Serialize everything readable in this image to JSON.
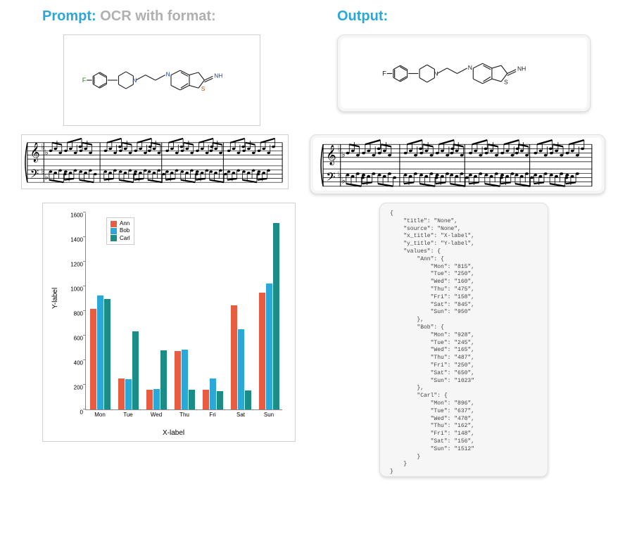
{
  "header": {
    "prompt_label": "Prompt:",
    "prompt_text": "OCR with format:",
    "output_label": "Output:"
  },
  "molecule": {
    "atoms": {
      "F": "F",
      "N1": "N",
      "N2": "N",
      "S": "S",
      "NH": "NH"
    },
    "colors": {
      "F": "#2e7d32",
      "N": "#1e40af",
      "S": "#b45309",
      "C": "#222222"
    }
  },
  "chart": {
    "type": "bar",
    "xlabel": "X-label",
    "ylabel": "Y-label",
    "ymin": 0,
    "ymax": 1600,
    "ytick_step": 200,
    "categories": [
      "Mon",
      "Tue",
      "Wed",
      "Thu",
      "Fri",
      "Sat",
      "Sun"
    ],
    "series": [
      {
        "name": "Ann",
        "color": "#e85c41",
        "values": [
          815,
          250,
          160,
          475,
          158,
          845,
          950
        ]
      },
      {
        "name": "Bob",
        "color": "#2aa8d8",
        "values": [
          928,
          245,
          165,
          487,
          250,
          650,
          1023
        ]
      },
      {
        "name": "Carl",
        "color": "#1b8d86",
        "values": [
          896,
          637,
          478,
          162,
          148,
          156,
          1512
        ]
      }
    ],
    "legend_fontsize": 8,
    "tick_fontsize": 8,
    "label_fontsize": 10,
    "grid_color": "#888888",
    "background_color": "#ffffff"
  },
  "json_output": {
    "title": "None",
    "source": "None",
    "x_title": "X-label",
    "y_title": "Y-label",
    "values": {
      "Ann": {
        "Mon": "815",
        "Tue": "250",
        "Wed": "160",
        "Thu": "475",
        "Fri": "158",
        "Sat": "845",
        "Sun": "950"
      },
      "Bob": {
        "Mon": "928",
        "Tue": "245",
        "Wed": "165",
        "Thu": "487",
        "Fri": "250",
        "Sat": "650",
        "Sun": "1023"
      },
      "Carl": {
        "Mon": "896",
        "Tue": "637",
        "Wed": "478",
        "Thu": "162",
        "Fri": "148",
        "Sat": "156",
        "Sun": "1512"
      }
    }
  },
  "music": {
    "clefs": [
      "treble",
      "bass"
    ],
    "key_flats": 2,
    "bars": 4
  }
}
